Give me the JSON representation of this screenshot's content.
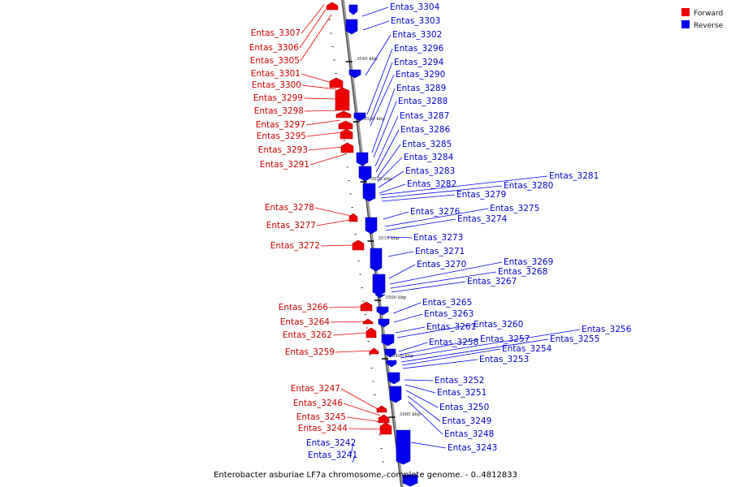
{
  "caption": "Enterobacter asburiae LF7a chromosome, complete genome. - 0..4812833",
  "legend": [
    {
      "label": "Forward",
      "color": "#ee0000"
    },
    {
      "label": "Reverse",
      "color": "#0000ee"
    }
  ],
  "kbp_labels": [
    "3540 kbp",
    "3530 kbp",
    "3520 kbp",
    "3510 kbp",
    "3500 kbp",
    "3490 kbp",
    "3480 kbp"
  ],
  "forward_genes": [
    "Entas_3307",
    "Entas_3306",
    "Entas_3305",
    "Entas_3301",
    "Entas_3300",
    "Entas_3299",
    "Entas_3298",
    "Entas_3297",
    "Entas_3295",
    "Entas_3293",
    "Entas_3291",
    "Entas_3278",
    "Entas_3277",
    "Entas_3272",
    "Entas_3266",
    "Entas_3264",
    "Entas_3262",
    "Entas_3259",
    "Entas_3247",
    "Entas_3246",
    "Entas_3245",
    "Entas_3244"
  ],
  "reverse_genes": [
    "Entas_3304",
    "Entas_3303",
    "Entas_3302",
    "Entas_3296",
    "Entas_3294",
    "Entas_3290",
    "Entas_3289",
    "Entas_3288",
    "Entas_3287",
    "Entas_3286",
    "Entas_3285",
    "Entas_3284",
    "Entas_3283",
    "Entas_3282",
    "Entas_3281",
    "Entas_3280",
    "Entas_3279",
    "Entas_3276",
    "Entas_3275",
    "Entas_3274",
    "Entas_3273",
    "Entas_3271",
    "Entas_3270",
    "Entas_3269",
    "Entas_3268",
    "Entas_3267",
    "Entas_3265",
    "Entas_3263",
    "Entas_3261",
    "Entas_3260",
    "Entas_3258",
    "Entas_3257",
    "Entas_3256",
    "Entas_3255",
    "Entas_3254",
    "Entas_3253",
    "Entas_3252",
    "Entas_3251",
    "Entas_3250",
    "Entas_3249",
    "Entas_3248",
    "Entas_3243",
    "Entas_3242",
    "Entas_3241"
  ]
}
